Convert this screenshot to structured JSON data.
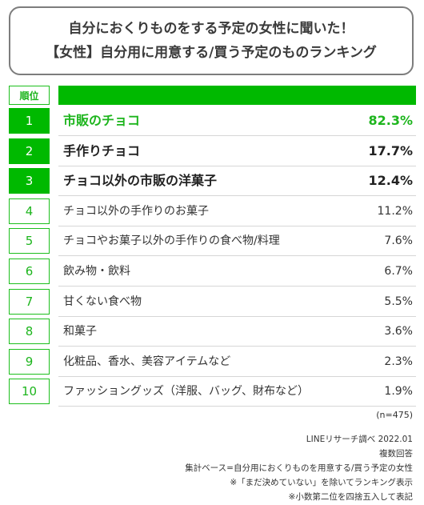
{
  "title": {
    "line1": "自分におくりものをする予定の女性に聞いた！",
    "line2": "【女性】自分用に用意する/買う予定のものランキング"
  },
  "header": {
    "rank_label": "順位"
  },
  "chart_data": {
    "type": "table",
    "columns": [
      "順位",
      "",
      ""
    ],
    "rows": [
      {
        "rank": "1",
        "item": "市販のチョコ",
        "value": "82.3%"
      },
      {
        "rank": "2",
        "item": "手作りチョコ",
        "value": "17.7%"
      },
      {
        "rank": "3",
        "item": "チョコ以外の市販の洋菓子",
        "value": "12.4%"
      },
      {
        "rank": "4",
        "item": "チョコ以外の手作りのお菓子",
        "value": "11.2%"
      },
      {
        "rank": "5",
        "item": "チョコやお菓子以外の手作りの食べ物/料理",
        "value": "7.6%"
      },
      {
        "rank": "6",
        "item": "飲み物・飲料",
        "value": "6.7%"
      },
      {
        "rank": "7",
        "item": "甘くない食べ物",
        "value": "5.5%"
      },
      {
        "rank": "8",
        "item": "和菓子",
        "value": "3.6%"
      },
      {
        "rank": "9",
        "item": "化粧品、香水、美容アイテムなど",
        "value": "2.3%"
      },
      {
        "rank": "10",
        "item": "ファッショングッズ（洋服、バッグ、財布など）",
        "value": "1.9%"
      }
    ]
  },
  "sample_note": "(n=475)",
  "footnotes": [
    "LINEリサーチ調べ 2022.01",
    "複数回答",
    "集計ベース=自分用におくりものを用意する/買う予定の女性",
    "※「まだ決めていない」を除いてランキング表示",
    "※小数第二位を四捨五入して表記"
  ],
  "colors": {
    "accent": "#00b900",
    "rank_text": "#1db51d",
    "border": "#7d7d7d"
  }
}
